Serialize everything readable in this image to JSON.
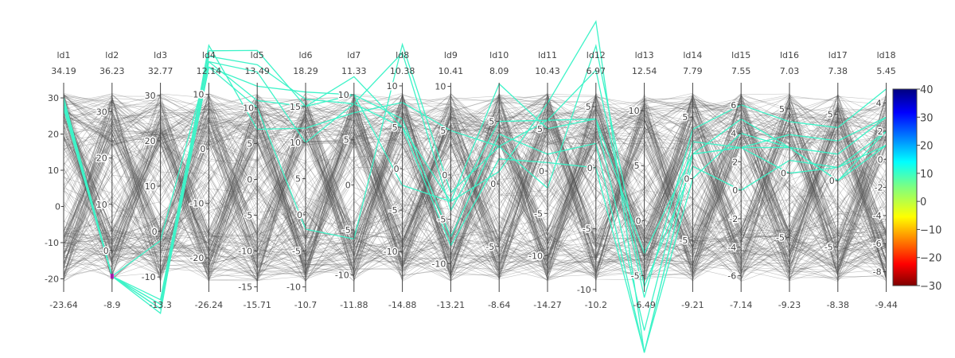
{
  "chart_data": {
    "type": "parallel_coordinates",
    "dimensions": [
      {
        "label": "ld1",
        "max": 34.19,
        "min": -23.64,
        "ticks": [
          30,
          20,
          10,
          0,
          -10,
          -20
        ],
        "labeled": [
          0
        ]
      },
      {
        "label": "ld2",
        "max": 36.23,
        "min": -8.9,
        "ticks": [
          30,
          20,
          10,
          0
        ],
        "labeled": [
          0
        ]
      },
      {
        "label": "ld3",
        "max": 32.77,
        "min": -13.3,
        "ticks": [
          30,
          20,
          10,
          0,
          -10
        ],
        "labeled": [
          0
        ]
      },
      {
        "label": "ld4",
        "max": 12.14,
        "min": -26.24,
        "ticks": [
          10,
          0,
          -10,
          -20
        ],
        "labeled": [
          0
        ]
      },
      {
        "label": "ld5",
        "max": 13.49,
        "min": -15.71,
        "ticks": [
          10,
          5,
          0,
          -5,
          -10,
          -15
        ],
        "labeled": [
          10
        ]
      },
      {
        "label": "ld6",
        "max": 18.29,
        "min": -10.7,
        "ticks": [
          15,
          10,
          5,
          0,
          -5,
          -10
        ],
        "labeled": [
          0
        ]
      },
      {
        "label": "ld7",
        "max": 11.33,
        "min": -11.88,
        "ticks": [
          10,
          5,
          0,
          -5,
          -10
        ],
        "labeled": [
          0,
          -5
        ]
      },
      {
        "label": "ld8",
        "max": 10.38,
        "min": -14.88,
        "ticks": [
          10,
          5,
          0,
          -5,
          -10
        ],
        "labeled": [
          0
        ]
      },
      {
        "label": "ld9",
        "max": 10.41,
        "min": -13.21,
        "ticks": [
          10,
          5,
          0,
          -5,
          -10
        ],
        "labeled": [
          0
        ]
      },
      {
        "label": "ld10",
        "max": 8.09,
        "min": -8.64,
        "ticks": [
          5,
          0,
          -5
        ],
        "labeled": [
          0
        ]
      },
      {
        "label": "ld11",
        "max": 10.43,
        "min": -14.27,
        "ticks": [
          5,
          0,
          -5,
          -10
        ],
        "labeled": [
          0
        ]
      },
      {
        "label": "ld12",
        "max": 6.97,
        "min": -10.2,
        "ticks": [
          5,
          0,
          -5,
          -10
        ],
        "labeled": [
          0
        ]
      },
      {
        "label": "ld13",
        "max": 12.54,
        "min": -6.49,
        "ticks": [
          10,
          5,
          0,
          -5
        ],
        "labeled": [
          0
        ]
      },
      {
        "label": "ld14",
        "max": 7.79,
        "min": -9.21,
        "ticks": [
          5,
          0,
          -5
        ],
        "labeled": [
          0
        ]
      },
      {
        "label": "ld15",
        "max": 7.55,
        "min": -7.14,
        "ticks": [
          6,
          4,
          2,
          0,
          -2,
          -4,
          -6
        ],
        "labeled": [
          0,
          2,
          -2
        ]
      },
      {
        "label": "ld16",
        "max": 7.03,
        "min": -9.23,
        "ticks": [
          5,
          0,
          -5
        ],
        "labeled": [
          0
        ]
      },
      {
        "label": "ld17",
        "max": 7.38,
        "min": -8.38,
        "ticks": [
          5,
          0,
          -5
        ],
        "labeled": [
          0
        ]
      },
      {
        "label": "ld18",
        "max": 5.45,
        "min": -9.44,
        "ticks": [
          4,
          2,
          0,
          -2,
          -4,
          -6,
          -8
        ],
        "labeled": [
          0,
          2,
          -2
        ]
      }
    ],
    "highlighted_lines": [
      [
        30,
        -5.5,
        -17,
        15,
        13,
        17,
        10,
        -2,
        -3,
        1,
        8,
        12,
        -12,
        2,
        5,
        2,
        2,
        3
      ],
      [
        29,
        -5.5,
        -16,
        17,
        16,
        16,
        9,
        14,
        -4,
        5,
        6,
        8,
        -7,
        4,
        6,
        4,
        4,
        5
      ],
      [
        28,
        -5.5,
        -18,
        19,
        7,
        12,
        8,
        8,
        5,
        3,
        6,
        4,
        -3,
        2,
        3,
        3,
        3,
        3
      ],
      [
        27,
        -5.5,
        -15,
        18,
        18,
        15,
        10,
        6,
        -7,
        4,
        2,
        2,
        -12,
        0,
        4,
        2,
        0,
        1
      ],
      [
        29,
        -5.5,
        -16,
        15,
        10,
        -2,
        -6,
        15,
        -2,
        3,
        -2,
        10,
        -6,
        1,
        0,
        1,
        1,
        1
      ],
      [
        28,
        -5.5,
        -17,
        16,
        15,
        10,
        9,
        5,
        -8,
        2,
        1,
        0,
        -12,
        2,
        3,
        2,
        0,
        2
      ],
      [
        30,
        -5.5,
        -2,
        16,
        11,
        15,
        12,
        5,
        -3,
        8,
        5,
        4,
        -10,
        3,
        3,
        0,
        1,
        2
      ]
    ],
    "background_line_color": "#555555",
    "highlight_color": "#3ef3c8",
    "marker_color": "#e000e0",
    "colorscale": {
      "type": "jet",
      "min": -30,
      "max": 40,
      "tick_labels": [
        "40",
        "30",
        "20",
        "10",
        "0",
        "−10",
        "−20",
        "−30"
      ],
      "tick_values": [
        40,
        30,
        20,
        10,
        0,
        -10,
        -20,
        -30
      ],
      "stops": [
        [
          0.0,
          "#7f0000"
        ],
        [
          0.11,
          "#ff0000"
        ],
        [
          0.35,
          "#ffff00"
        ],
        [
          0.5,
          "#7fff7f"
        ],
        [
          0.63,
          "#00ffff"
        ],
        [
          0.88,
          "#0000ff"
        ],
        [
          1.0,
          "#00007f"
        ]
      ]
    }
  }
}
